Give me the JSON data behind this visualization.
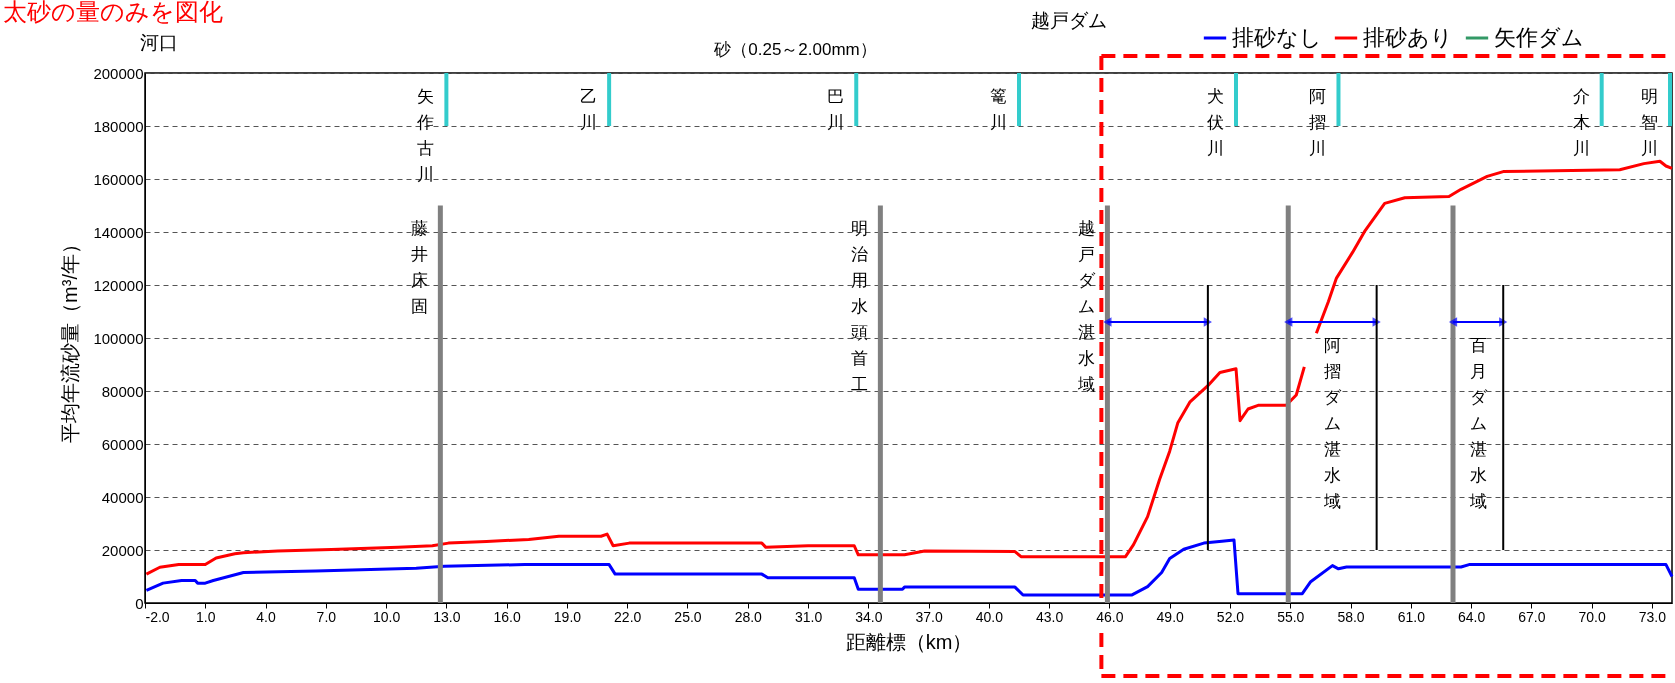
{
  "chart_data": {
    "type": "line",
    "title": "太砂の量のみを図化",
    "subtitle": "砂（0.25～2.00mm）",
    "xlabel": "距離標（km）",
    "ylabel": "平均年流砂量（m³/年）",
    "xlim": [
      -2,
      74
    ],
    "ylim": [
      0,
      200000
    ],
    "xticks": [
      {
        "value": -2,
        "label": "-2.0"
      },
      {
        "value": 1,
        "label": "1.0"
      },
      {
        "value": 4,
        "label": "4.0"
      },
      {
        "value": 7,
        "label": "7.0"
      },
      {
        "value": 10,
        "label": "10.0"
      },
      {
        "value": 13,
        "label": "13.0"
      },
      {
        "value": 16,
        "label": "16.0"
      },
      {
        "value": 19,
        "label": "19.0"
      },
      {
        "value": 22,
        "label": "22.0"
      },
      {
        "value": 25,
        "label": "25.0"
      },
      {
        "value": 28,
        "label": "28.0"
      },
      {
        "value": 31,
        "label": "31.0"
      },
      {
        "value": 34,
        "label": "34.0"
      },
      {
        "value": 37,
        "label": "37.0"
      },
      {
        "value": 40,
        "label": "40.0"
      },
      {
        "value": 43,
        "label": "43.0"
      },
      {
        "value": 46,
        "label": "46.0"
      },
      {
        "value": 49,
        "label": "49.0"
      },
      {
        "value": 52,
        "label": "52.0"
      },
      {
        "value": 55,
        "label": "55.0"
      },
      {
        "value": 58,
        "label": "58.0"
      },
      {
        "value": 61,
        "label": "61.0"
      },
      {
        "value": 64,
        "label": "64.0"
      },
      {
        "value": 67,
        "label": "67.0"
      },
      {
        "value": 70,
        "label": "70.0"
      },
      {
        "value": 73,
        "label": "73.0"
      }
    ],
    "yticks": [
      0,
      20000,
      40000,
      60000,
      80000,
      100000,
      120000,
      140000,
      160000,
      180000,
      200000
    ],
    "grid": "y",
    "legend": "top right",
    "marker": "none",
    "line_style": "solid",
    "series": [
      {
        "name": "排砂なし",
        "color": "#0000ff",
        "x": [
          -1.93,
          -1.1,
          -0.18,
          0.5,
          0.62,
          1.0,
          1.4,
          2.2,
          2.9,
          6.5,
          11.5,
          12.9,
          16.9,
          21.1,
          21.4,
          28.7,
          29.0,
          33.3,
          33.5,
          35.7,
          35.8,
          41.3,
          41.7,
          47.1,
          47.9,
          48.6,
          49.0,
          49.7,
          50.7,
          51.6,
          52.2,
          52.4,
          55.6,
          56.0,
          57.1,
          57.4,
          57.8,
          63.5,
          63.9,
          73.7,
          74.0
        ],
        "values": [
          4800,
          7500,
          8500,
          8500,
          7500,
          7500,
          8500,
          10100,
          11500,
          12100,
          13100,
          13900,
          14500,
          14500,
          10900,
          10900,
          9500,
          9500,
          5200,
          5200,
          6000,
          6000,
          3000,
          3000,
          6200,
          11500,
          16800,
          20300,
          22600,
          23300,
          23800,
          3500,
          3500,
          7900,
          14100,
          12900,
          13600,
          13600,
          14500,
          14500,
          10000
        ]
      },
      {
        "name": "排砂あり",
        "color": "#ff0000",
        "x": [
          -1.93,
          -1.26,
          -0.32,
          1.0,
          1.54,
          2.47,
          2.9,
          4.6,
          7.27,
          10.6,
          12.3,
          13.1,
          15.0,
          17.1,
          18.6,
          20.7,
          21.0,
          21.3,
          22.1,
          28.7,
          28.9,
          31.0,
          33.3,
          33.5,
          35.8,
          36.8,
          41.3,
          41.6,
          46.8,
          47.2,
          47.9,
          48.5,
          49.0,
          49.4,
          50.0,
          50.9,
          51.5,
          52.3,
          52.5,
          52.9,
          53.4,
          54.8,
          55.3,
          55.7,
          56.0,
          56.3,
          56.9,
          57.3,
          58.1,
          58.7,
          59.2,
          59.7,
          60.7,
          62.9,
          63.5,
          64.8,
          65.6,
          71.4,
          72.6,
          73.4,
          73.7,
          74.0
        ],
        "values": [
          10900,
          13500,
          14500,
          14500,
          17000,
          18600,
          19000,
          19600,
          20200,
          21000,
          21600,
          22600,
          23200,
          24000,
          25200,
          25200,
          26000,
          21600,
          22600,
          22600,
          21000,
          21600,
          21600,
          18200,
          18200,
          19600,
          19400,
          17500,
          17500,
          22000,
          32600,
          46700,
          57300,
          67900,
          75800,
          82000,
          87000,
          88400,
          68800,
          73200,
          74600,
          74600,
          78500,
          89100,
          null,
          101800,
          113800,
          122600,
          132300,
          140200,
          145500,
          150800,
          152900,
          153400,
          156100,
          161000,
          162800,
          163500,
          165800,
          166700,
          164900,
          164000
        ]
      },
      {
        "name": "矢作ダム",
        "color": "#339966"
      }
    ],
    "ref_lines": [
      {
        "axis": "x",
        "value": 12.7,
        "label": "藤井床固",
        "color": "#808080"
      },
      {
        "axis": "x",
        "value": 34.6,
        "label": "明治用水頭首工",
        "color": "#808080"
      },
      {
        "axis": "x",
        "value": 45.9,
        "label": "越戸ダム湛水域",
        "color": "#808080"
      },
      {
        "axis": "x",
        "value": 54.9,
        "label": null,
        "color": "#808080"
      },
      {
        "axis": "x",
        "value": 63.1,
        "label": null,
        "color": "#808080"
      },
      {
        "axis": "x",
        "value": 13.0,
        "label": "矢作古川",
        "color": "#33cccc"
      },
      {
        "axis": "x",
        "value": 21.1,
        "label": "乙川",
        "color": "#33cccc"
      },
      {
        "axis": "x",
        "value": 33.4,
        "label": "巴川",
        "color": "#33cccc"
      },
      {
        "axis": "x",
        "value": 41.5,
        "label": "篭川",
        "color": "#33cccc"
      },
      {
        "axis": "x",
        "value": 52.3,
        "label": "犬伏川",
        "color": "#33cccc"
      },
      {
        "axis": "x",
        "value": 57.4,
        "label": "阿摺川",
        "color": "#33cccc"
      },
      {
        "axis": "x",
        "value": 70.5,
        "label": "介木川",
        "color": "#33cccc"
      },
      {
        "axis": "x",
        "value": 73.9,
        "label": "明智川",
        "color": "#33cccc"
      },
      {
        "axis": "x",
        "value": 50.9,
        "label": null,
        "color": "#000000"
      },
      {
        "axis": "x",
        "value": 59.3,
        "label": "阿摺ダム湛水域",
        "color": "#000000"
      },
      {
        "axis": "x",
        "value": 65.6,
        "label": "百月ダム湛水域",
        "color": "#000000"
      },
      {
        "axis": "x",
        "value": 45.6,
        "label": null,
        "color": "#ff0000",
        "line_style": "dashed"
      }
    ],
    "annotations": [
      "河口",
      "越戸ダム"
    ]
  }
}
